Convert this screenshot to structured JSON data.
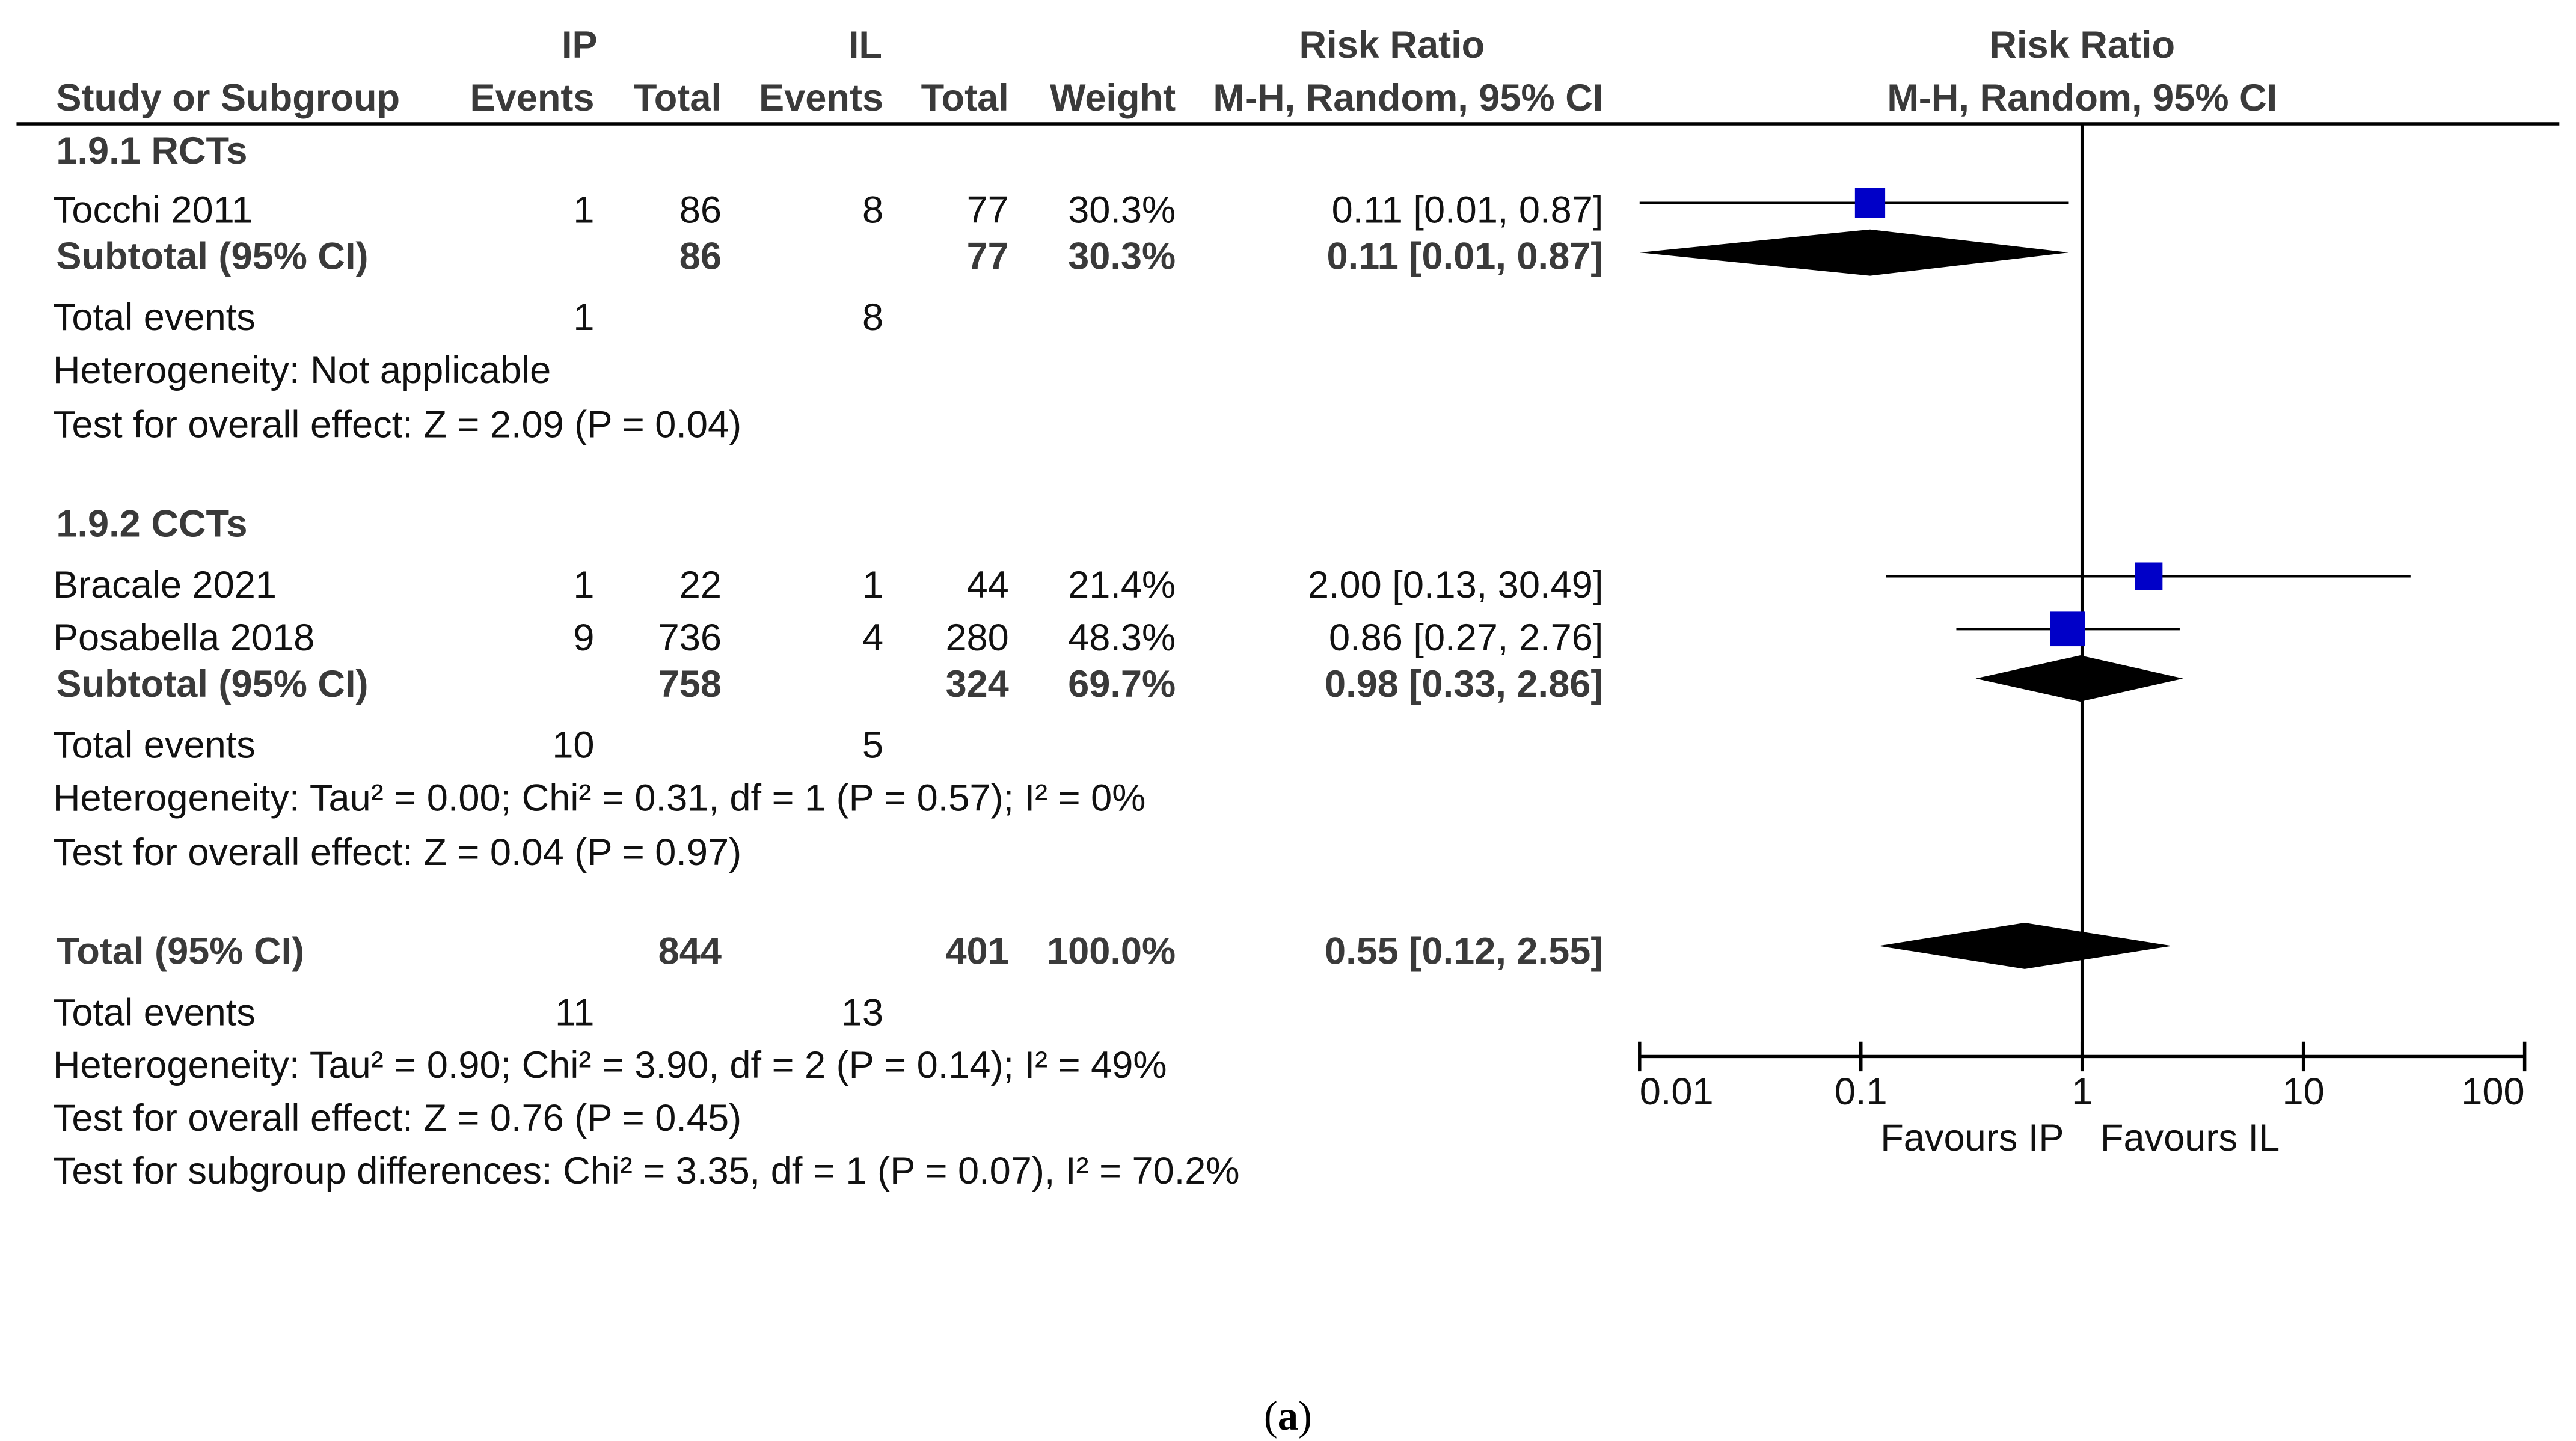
{
  "chart_data": {
    "type": "forest",
    "title": "Risk Ratio",
    "axis": {
      "scale": "log",
      "range": [
        0.01,
        100
      ],
      "ticks": [
        0.01,
        0.1,
        1,
        10,
        100
      ],
      "tick_labels": [
        "0.01",
        "0.1",
        "1",
        "10",
        "100"
      ],
      "reference_line": 1,
      "favours_left": "Favours IP",
      "favours_right": "Favours IL"
    },
    "header": {
      "group1": "IP",
      "group2": "IL",
      "rr_title": "Risk Ratio",
      "study_col": "Study or Subgroup",
      "events": "Events",
      "total": "Total",
      "weight": "Weight",
      "method": "M-H, Random, 95% CI"
    },
    "subgroups": [
      {
        "title": "1.9.1 RCTs",
        "studies": [
          {
            "name": "Tocchi 2011",
            "e1": "1",
            "t1": "86",
            "e2": "8",
            "t2": "77",
            "weight": "30.3%",
            "ci_text": "0.11 [0.01, 0.87]",
            "rr": 0.11,
            "lo": 0.01,
            "hi": 0.87,
            "w": 30.3
          }
        ],
        "subtotal": {
          "label": "Subtotal (95% CI)",
          "t1": "86",
          "t2": "77",
          "weight": "30.3%",
          "ci_text": "0.11 [0.01, 0.87]",
          "rr": 0.11,
          "lo": 0.01,
          "hi": 0.87
        },
        "total_events": {
          "label": "Total events",
          "e1": "1",
          "e2": "8"
        },
        "heterogeneity": "Heterogeneity: Not applicable",
        "overall": "Test for overall effect: Z = 2.09 (P = 0.04)"
      },
      {
        "title": "1.9.2 CCTs",
        "studies": [
          {
            "name": "Bracale 2021",
            "e1": "1",
            "t1": "22",
            "e2": "1",
            "t2": "44",
            "weight": "21.4%",
            "ci_text": "2.00 [0.13, 30.49]",
            "rr": 2.0,
            "lo": 0.13,
            "hi": 30.49,
            "w": 21.4
          },
          {
            "name": "Posabella 2018",
            "e1": "9",
            "t1": "736",
            "e2": "4",
            "t2": "280",
            "weight": "48.3%",
            "ci_text": "0.86 [0.27, 2.76]",
            "rr": 0.86,
            "lo": 0.27,
            "hi": 2.76,
            "w": 48.3
          }
        ],
        "subtotal": {
          "label": "Subtotal (95% CI)",
          "t1": "758",
          "t2": "324",
          "weight": "69.7%",
          "ci_text": "0.98 [0.33, 2.86]",
          "rr": 0.98,
          "lo": 0.33,
          "hi": 2.86
        },
        "total_events": {
          "label": "Total events",
          "e1": "10",
          "e2": "5"
        },
        "heterogeneity": "Heterogeneity: Tau² = 0.00; Chi² = 0.31, df = 1 (P = 0.57); I² = 0%",
        "overall": "Test for overall effect: Z = 0.04 (P = 0.97)"
      }
    ],
    "total": {
      "label": "Total (95% CI)",
      "t1": "844",
      "t2": "401",
      "weight": "100.0%",
      "ci_text": "0.55 [0.12, 2.55]",
      "rr": 0.55,
      "lo": 0.12,
      "hi": 2.55,
      "events_label": "Total events",
      "e1": "11",
      "e2": "13",
      "heterogeneity": "Heterogeneity: Tau² = 0.90; Chi² = 3.90, df = 2 (P = 0.14); I² = 49%",
      "overall": "Test for overall effect: Z = 0.76 (P = 0.45)",
      "subgroup_diff": "Test for subgroup differences: Chi² = 3.35, df = 1 (P = 0.07), I² = 70.2%"
    }
  },
  "caption": {
    "open": "(",
    "letter": "a",
    "close": ")"
  },
  "colors": {
    "square": "#0000c8",
    "diamond": "#000000",
    "line": "#000000",
    "text": "#111111"
  }
}
